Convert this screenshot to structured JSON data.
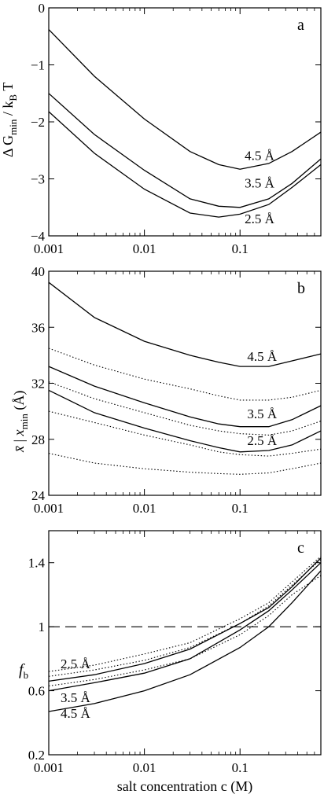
{
  "xlabel": "salt concentration  c (M)",
  "chart_data": [
    {
      "id": "a",
      "type": "line",
      "panel_label": "a",
      "ylabel": "Δ G_min / k_B T",
      "ylim": [
        -4,
        0
      ],
      "yticks": [
        0,
        -1,
        -2,
        -3,
        -4
      ],
      "ytick_labels": [
        "0",
        "−1",
        "−2",
        "−3",
        "−4"
      ],
      "xscale": "log",
      "xlim": [
        0.001,
        0.7
      ],
      "xticks": [
        0.001,
        0.01,
        0.1
      ],
      "xtick_labels": [
        "0.001",
        "0.01",
        "0.1"
      ],
      "series": [
        {
          "name": "4.5 Å",
          "style": "solid",
          "x": [
            0.001,
            0.003,
            0.01,
            0.03,
            0.06,
            0.1,
            0.2,
            0.35,
            0.7
          ],
          "y": [
            -0.38,
            -1.2,
            -1.95,
            -2.52,
            -2.75,
            -2.83,
            -2.73,
            -2.52,
            -2.18
          ]
        },
        {
          "name": "3.5 Å",
          "style": "solid",
          "x": [
            0.001,
            0.003,
            0.01,
            0.03,
            0.06,
            0.1,
            0.2,
            0.35,
            0.7
          ],
          "y": [
            -1.5,
            -2.22,
            -2.85,
            -3.35,
            -3.48,
            -3.5,
            -3.35,
            -3.08,
            -2.65
          ]
        },
        {
          "name": "2.5 Å",
          "style": "solid",
          "x": [
            0.001,
            0.003,
            0.01,
            0.03,
            0.06,
            0.1,
            0.2,
            0.35,
            0.7
          ],
          "y": [
            -1.82,
            -2.55,
            -3.18,
            -3.6,
            -3.67,
            -3.62,
            -3.45,
            -3.15,
            -2.75
          ]
        }
      ],
      "labels": [
        {
          "text": "4.5 Å",
          "x": 0.16,
          "y": -2.67
        },
        {
          "text": "3.5 Å",
          "x": 0.16,
          "y": -3.15
        },
        {
          "text": "2.5 Å",
          "x": 0.16,
          "y": -3.78
        }
      ]
    },
    {
      "id": "b",
      "type": "line",
      "panel_label": "b",
      "ylabel": "x̄ | x_min (Å)",
      "ylim": [
        24,
        40
      ],
      "yticks": [
        24,
        28,
        32,
        36,
        40
      ],
      "ytick_labels": [
        "24",
        "28",
        "32",
        "36",
        "40"
      ],
      "xscale": "log",
      "xlim": [
        0.001,
        0.7
      ],
      "xticks": [
        0.001,
        0.01,
        0.1
      ],
      "xtick_labels": [
        "0.001",
        "0.01",
        "0.1"
      ],
      "series": [
        {
          "name": "4.5 Å x_min",
          "style": "solid",
          "x": [
            0.001,
            0.003,
            0.01,
            0.03,
            0.06,
            0.1,
            0.2,
            0.35,
            0.7
          ],
          "y": [
            39.2,
            36.7,
            35.0,
            34.0,
            33.5,
            33.2,
            33.2,
            33.6,
            34.1
          ]
        },
        {
          "name": "4.5 Å x̄",
          "style": "dotted",
          "x": [
            0.001,
            0.003,
            0.01,
            0.03,
            0.06,
            0.1,
            0.2,
            0.35,
            0.7
          ],
          "y": [
            34.5,
            33.3,
            32.3,
            31.6,
            31.1,
            30.8,
            30.8,
            31.0,
            31.5
          ]
        },
        {
          "name": "3.5 Å x_min",
          "style": "solid",
          "x": [
            0.001,
            0.003,
            0.01,
            0.03,
            0.06,
            0.1,
            0.2,
            0.35,
            0.7
          ],
          "y": [
            33.2,
            31.8,
            30.6,
            29.6,
            29.1,
            28.9,
            28.9,
            29.4,
            30.4
          ]
        },
        {
          "name": "3.5 Å x̄",
          "style": "dotted",
          "x": [
            0.001,
            0.003,
            0.01,
            0.03,
            0.06,
            0.1,
            0.2,
            0.35,
            0.7
          ],
          "y": [
            32.1,
            30.9,
            29.9,
            29.0,
            28.6,
            28.4,
            28.3,
            28.6,
            29.3
          ]
        },
        {
          "name": "2.5 Å x_min",
          "style": "solid",
          "x": [
            0.001,
            0.003,
            0.01,
            0.03,
            0.06,
            0.1,
            0.2,
            0.35,
            0.7
          ],
          "y": [
            31.5,
            29.9,
            28.8,
            27.9,
            27.4,
            27.1,
            27.2,
            27.6,
            28.6
          ]
        },
        {
          "name": "2.5 Å x̄",
          "style": "dotted",
          "x": [
            0.001,
            0.003,
            0.01,
            0.03,
            0.06,
            0.1,
            0.2,
            0.35,
            0.7
          ],
          "y": [
            30.0,
            29.2,
            28.3,
            27.6,
            27.1,
            26.9,
            26.8,
            27.0,
            27.3
          ]
        },
        {
          "name": "x̄ lower",
          "style": "dotted",
          "x": [
            0.001,
            0.003,
            0.01,
            0.03,
            0.06,
            0.1,
            0.2,
            0.35,
            0.7
          ],
          "y": [
            27.0,
            26.3,
            25.9,
            25.65,
            25.55,
            25.5,
            25.6,
            25.9,
            26.3
          ]
        }
      ],
      "labels": [
        {
          "text": "4.5 Å",
          "x": 0.17,
          "y": 33.6
        },
        {
          "text": "3.5 Å",
          "x": 0.17,
          "y": 29.5
        },
        {
          "text": "2.5 Å",
          "x": 0.17,
          "y": 27.6
        }
      ]
    },
    {
      "id": "c",
      "type": "line",
      "panel_label": "c",
      "ylabel": "f_b",
      "ylim": [
        0.2,
        1.6
      ],
      "yticks": [
        0.2,
        0.6,
        1.0,
        1.4
      ],
      "ytick_labels": [
        "0.2",
        "0.6",
        "1",
        "1.4"
      ],
      "xscale": "log",
      "xlim": [
        0.001,
        0.7
      ],
      "xticks": [
        0.001,
        0.01,
        0.1
      ],
      "xtick_labels": [
        "0.001",
        "0.01",
        "0.1"
      ],
      "hline": 1.0,
      "series": [
        {
          "name": "2.5 Å solid",
          "style": "solid",
          "x": [
            0.001,
            0.003,
            0.01,
            0.03,
            0.1,
            0.2,
            0.35,
            0.7
          ],
          "y": [
            0.66,
            0.7,
            0.77,
            0.86,
            1.02,
            1.12,
            1.25,
            1.43
          ]
        },
        {
          "name": "2.5 Å dotted",
          "style": "dotted",
          "x": [
            0.001,
            0.003,
            0.01,
            0.03,
            0.1,
            0.2,
            0.35,
            0.7
          ],
          "y": [
            0.72,
            0.76,
            0.83,
            0.9,
            1.05,
            1.15,
            1.28,
            1.44
          ]
        },
        {
          "name": "3.5 Å solid",
          "style": "solid",
          "x": [
            0.001,
            0.003,
            0.01,
            0.03,
            0.1,
            0.2,
            0.35,
            0.7
          ],
          "y": [
            0.6,
            0.65,
            0.71,
            0.8,
            0.98,
            1.1,
            1.23,
            1.4
          ]
        },
        {
          "name": "3.5 Å dotted",
          "style": "dotted",
          "x": [
            0.001,
            0.003,
            0.01,
            0.03,
            0.1,
            0.2,
            0.35,
            0.7
          ],
          "y": [
            0.69,
            0.73,
            0.79,
            0.87,
            1.02,
            1.13,
            1.26,
            1.42
          ]
        },
        {
          "name": "4.5 Å solid",
          "style": "solid",
          "x": [
            0.001,
            0.003,
            0.01,
            0.03,
            0.1,
            0.2,
            0.35,
            0.7
          ],
          "y": [
            0.47,
            0.52,
            0.6,
            0.7,
            0.87,
            1.0,
            1.15,
            1.35
          ]
        },
        {
          "name": "4.5 Å dotted",
          "style": "dotted",
          "x": [
            0.001,
            0.003,
            0.01,
            0.03,
            0.1,
            0.2,
            0.35,
            0.7
          ],
          "y": [
            0.63,
            0.67,
            0.73,
            0.8,
            0.95,
            1.07,
            1.2,
            1.32
          ]
        }
      ],
      "labels": [
        {
          "text": "2.5 Å",
          "x": 0.0019,
          "y": 0.74
        },
        {
          "text": "3.5 Å",
          "x": 0.0019,
          "y": 0.53
        },
        {
          "text": "4.5 Å",
          "x": 0.0019,
          "y": 0.43
        }
      ]
    }
  ]
}
